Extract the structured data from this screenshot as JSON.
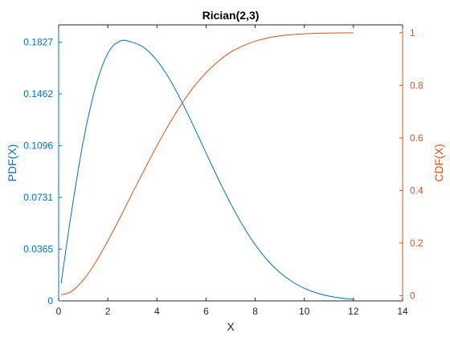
{
  "chart_data": {
    "type": "line",
    "title": "Rician(2,3)",
    "xlabel": "X",
    "ylabel_left": "PDF(X)",
    "ylabel_right": "CDF(X)",
    "xlim": [
      0,
      14
    ],
    "ylim_left": [
      0,
      0.195
    ],
    "ylim_right": [
      -0.02,
      1.03
    ],
    "x_ticks": [
      "0",
      "2",
      "4",
      "6",
      "8",
      "10",
      "12",
      "14"
    ],
    "y_left_ticks": [
      "0",
      "0.0365",
      "0.0731",
      "0.1096",
      "0.1462",
      "0.1827"
    ],
    "y_right_ticks": [
      "0",
      "0.2",
      "0.4",
      "0.6",
      "0.8",
      "1"
    ],
    "grid": false,
    "colors": {
      "left_axis": "#0072BD",
      "right_axis": "#D95319",
      "axes": "#262626"
    },
    "series": [
      {
        "name": "PDF",
        "axis": "left",
        "color": "#0072BD",
        "x": [
          0.1,
          0.5,
          1.0,
          1.5,
          2.0,
          2.5,
          3.0,
          3.5,
          4.0,
          4.5,
          5.0,
          5.5,
          6.0,
          6.5,
          7.0,
          7.5,
          8.0,
          8.5,
          9.0,
          9.5,
          10.0,
          10.5,
          11.0,
          11.5,
          12.0
        ],
        "values": [
          0.0123,
          0.0604,
          0.1126,
          0.151,
          0.1748,
          0.1836,
          0.1827,
          0.1786,
          0.1698,
          0.1571,
          0.1411,
          0.1232,
          0.1045,
          0.0861,
          0.0687,
          0.0531,
          0.0397,
          0.0287,
          0.0201,
          0.0136,
          0.0089,
          0.0056,
          0.0034,
          0.002,
          0.0011
        ]
      },
      {
        "name": "CDF",
        "axis": "right",
        "color": "#D95319",
        "x": [
          0.1,
          0.5,
          1.0,
          1.5,
          2.0,
          2.5,
          3.0,
          3.5,
          4.0,
          4.5,
          5.0,
          5.5,
          6.0,
          6.5,
          7.0,
          7.5,
          8.0,
          8.5,
          9.0,
          9.5,
          10.0,
          10.5,
          11.0,
          11.5,
          12.0
        ],
        "values": [
          0.003,
          0.015,
          0.059,
          0.126,
          0.208,
          0.297,
          0.39,
          0.481,
          0.57,
          0.653,
          0.728,
          0.794,
          0.848,
          0.892,
          0.926,
          0.95,
          0.968,
          0.98,
          0.988,
          0.993,
          0.996,
          0.998,
          0.9989,
          0.9995,
          0.9998
        ]
      }
    ]
  }
}
